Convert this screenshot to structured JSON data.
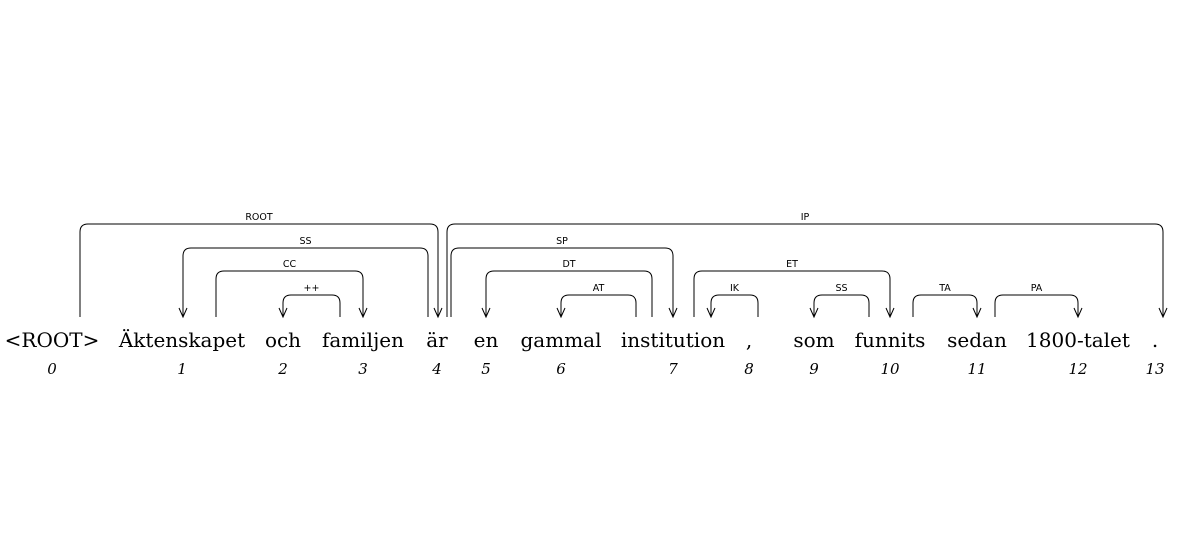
{
  "tokens": [
    {
      "text": "<ROOT>",
      "index": "0"
    },
    {
      "text": "Äktenskapet",
      "index": "1"
    },
    {
      "text": "och",
      "index": "2"
    },
    {
      "text": "familjen",
      "index": "3"
    },
    {
      "text": "är",
      "index": "4"
    },
    {
      "text": "en",
      "index": "5"
    },
    {
      "text": "gammal",
      "index": "6"
    },
    {
      "text": "institution",
      "index": "7"
    },
    {
      "text": ",",
      "index": "8"
    },
    {
      "text": "som",
      "index": "9"
    },
    {
      "text": "funnits",
      "index": "10"
    },
    {
      "text": "sedan",
      "index": "11"
    },
    {
      "text": "1800-talet",
      "index": "12"
    },
    {
      "text": ".",
      "index": "13"
    }
  ],
  "arcs": [
    {
      "from": 0,
      "to": 4,
      "label": "ROOT"
    },
    {
      "from": 4,
      "to": 13,
      "label": "IP"
    },
    {
      "from": 4,
      "to": 1,
      "label": "SS"
    },
    {
      "from": 1,
      "to": 3,
      "label": "CC"
    },
    {
      "from": 3,
      "to": 2,
      "label": "++"
    },
    {
      "from": 4,
      "to": 7,
      "label": "SP"
    },
    {
      "from": 7,
      "to": 5,
      "label": "DT"
    },
    {
      "from": 7,
      "to": 6,
      "label": "AT"
    },
    {
      "from": 7,
      "to": 10,
      "label": "ET"
    },
    {
      "from": 10,
      "to": 8,
      "label": "IK"
    },
    {
      "from": 10,
      "to": 9,
      "label": "SS"
    },
    {
      "from": 11,
      "to": 10,
      "label": "TA"
    },
    {
      "from": 11,
      "to": 12,
      "label": "PA"
    }
  ]
}
